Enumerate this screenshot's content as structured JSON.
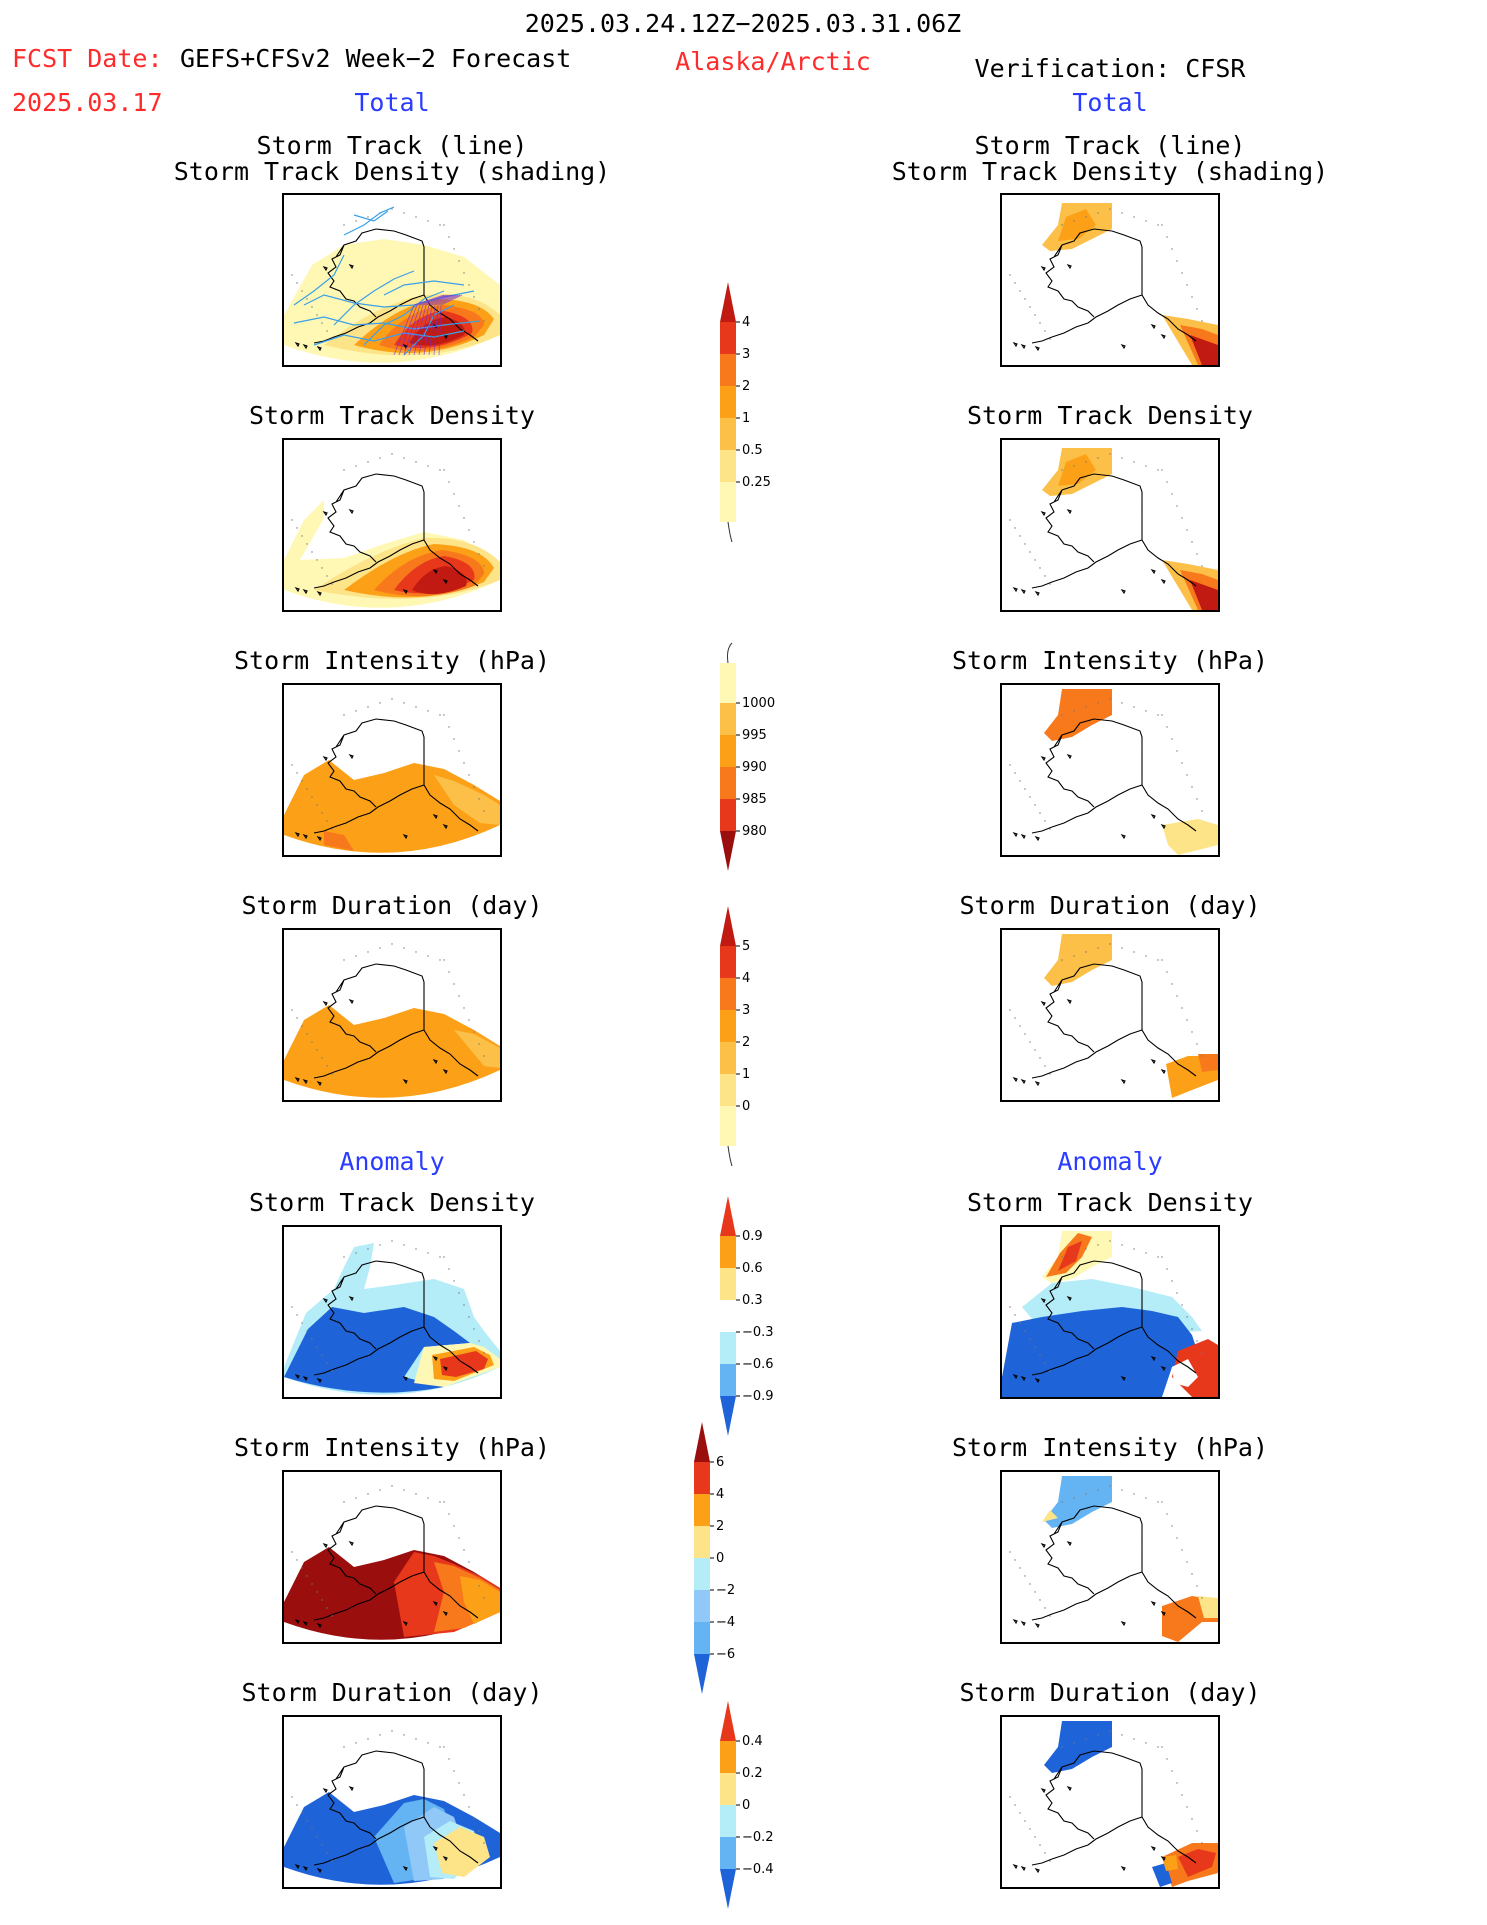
{
  "header": {
    "date_range": "2025.03.24.12Z−2025.03.31.06Z",
    "fcst_date_label": "FCST Date:",
    "forecast_name": "GEFS+CFSv2 Week−2 Forecast",
    "fcst_date": "2025.03.17",
    "region": "Alaska/Arctic",
    "verification": "Verification: CFSR"
  },
  "sections": {
    "total": "Total",
    "anomaly": "Anomaly"
  },
  "panels": {
    "track_line": "Storm Track (line)",
    "track_shading": "Storm Track Density (shading)",
    "density": "Storm Track Density",
    "intensity": "Storm Intensity (hPa)",
    "duration": "Storm Duration (day)"
  },
  "colorbars": {
    "density_total": {
      "labels": [
        "0.25",
        "0.5",
        "1",
        "2",
        "3",
        "4"
      ],
      "colors": [
        "#fff8b4",
        "#fde488",
        "#fcc048",
        "#fca018",
        "#f8781c",
        "#e8381c",
        "#c01a12"
      ]
    },
    "intensity_total": {
      "labels": [
        "1000",
        "995",
        "990",
        "985",
        "980"
      ],
      "colors": [
        "#fff8b4",
        "#fcc048",
        "#fca018",
        "#f8781c",
        "#e8381c",
        "#9a0e0e"
      ]
    },
    "duration_total": {
      "labels": [
        "0",
        "1",
        "2",
        "3",
        "4",
        "5"
      ],
      "colors": [
        "#fff8b4",
        "#fde488",
        "#fcc048",
        "#fca018",
        "#f8781c",
        "#e8381c",
        "#c01a12"
      ]
    },
    "density_anom": {
      "labels": [
        "0.9",
        "0.6",
        "0.3",
        "−0.3",
        "−0.6",
        "−0.9"
      ],
      "colors": [
        "#e8381c",
        "#fca018",
        "#fde488",
        "#ffffff",
        "#b4ecf8",
        "#64b4f4",
        "#1e64d8"
      ]
    },
    "intensity_anom": {
      "labels": [
        "6",
        "4",
        "2",
        "0",
        "−2",
        "−4",
        "−6"
      ],
      "colors": [
        "#9a0e0e",
        "#e8381c",
        "#fca018",
        "#fde488",
        "#b4ecf8",
        "#90c8f8",
        "#64b4f4",
        "#1e64d8"
      ]
    },
    "duration_anom": {
      "labels": [
        "0.4",
        "0.2",
        "0",
        "−0.2",
        "−0.4"
      ],
      "colors": [
        "#e8381c",
        "#fca018",
        "#fde488",
        "#b4ecf8",
        "#64b4f4",
        "#1e64d8"
      ]
    }
  }
}
